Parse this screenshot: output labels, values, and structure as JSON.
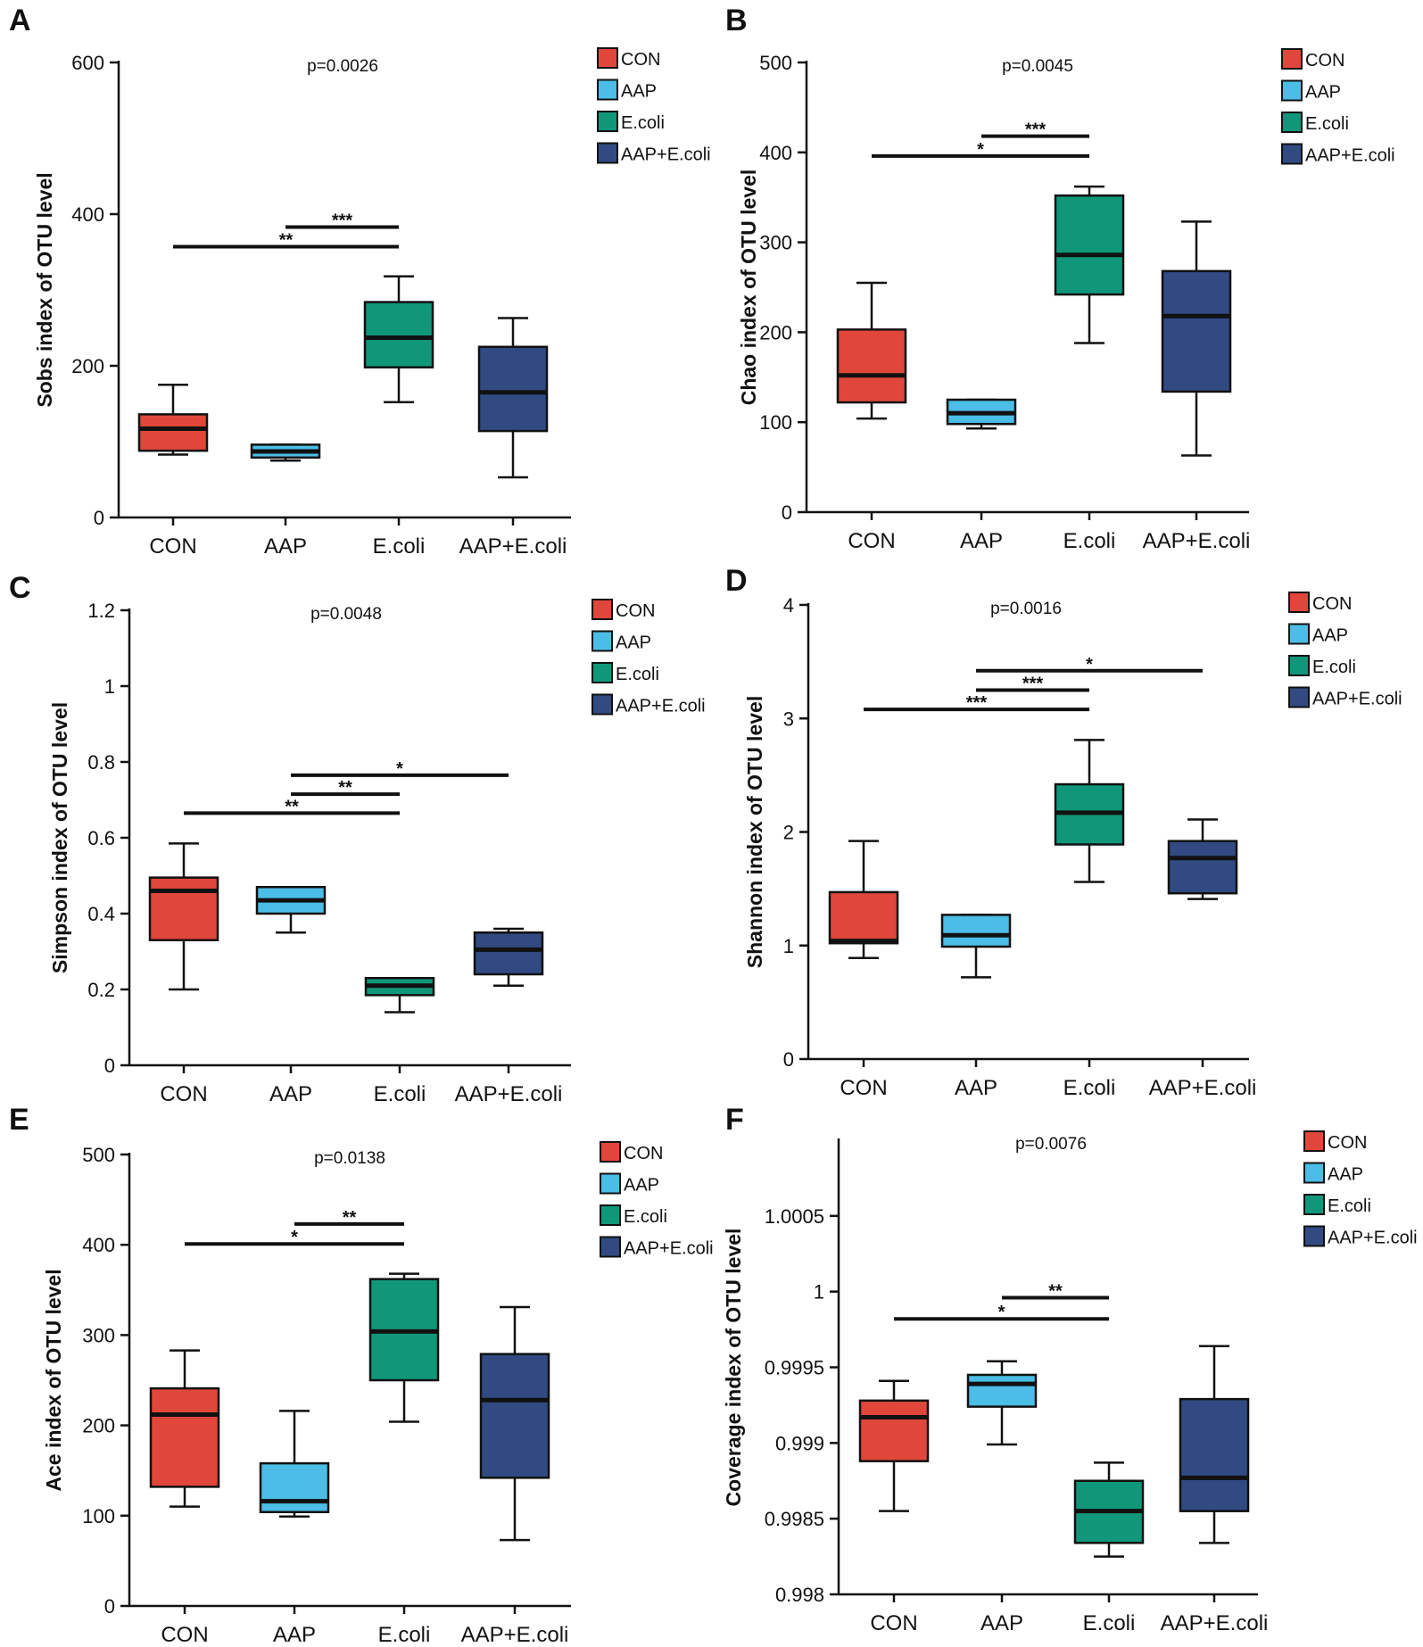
{
  "colors": {
    "CON": "#e0473a",
    "AAP": "#4bbde6",
    "E.coli": "#10977a",
    "AAP+E.coli": "#314a82",
    "axis": "#111111"
  },
  "chart_data": [
    {
      "panel": "A",
      "type": "box",
      "title": "p=0.0026",
      "ylabel": "Sobs index of OTU level",
      "categories": [
        "CON",
        "AAP",
        "E.coli",
        "AAP+E.coli"
      ],
      "ylim": [
        0,
        600
      ],
      "yticks": [
        0,
        200,
        400,
        600
      ],
      "tick_labels": [
        "0",
        "200",
        "400",
        "600"
      ],
      "boxes": [
        {
          "min": 83,
          "q1": 88,
          "median": 117,
          "q3": 136,
          "max": 175
        },
        {
          "min": 75,
          "q1": 79,
          "median": 87,
          "q3": 96,
          "max": 96
        },
        {
          "min": 152,
          "q1": 198,
          "median": 237,
          "q3": 284,
          "max": 318
        },
        {
          "min": 53,
          "q1": 114,
          "median": 165,
          "q3": 225,
          "max": 263
        }
      ],
      "legend": [
        "CON",
        "AAP",
        "E.coli",
        "AAP+E.coli"
      ],
      "significance": [
        {
          "from": 1,
          "to": 2,
          "y": 383,
          "label": "***"
        },
        {
          "from": 0,
          "to": 2,
          "y": 357,
          "label": "**"
        }
      ]
    },
    {
      "panel": "B",
      "type": "box",
      "title": "p=0.0045",
      "ylabel": "Chao index of OTU level",
      "categories": [
        "CON",
        "AAP",
        "E.coli",
        "AAP+E.coli"
      ],
      "ylim": [
        0,
        500
      ],
      "yticks": [
        0,
        100,
        200,
        300,
        400,
        500
      ],
      "tick_labels": [
        "0",
        "100",
        "200",
        "300",
        "400",
        "500"
      ],
      "boxes": [
        {
          "min": 104,
          "q1": 122,
          "median": 152,
          "q3": 203,
          "max": 255
        },
        {
          "min": 93,
          "q1": 98,
          "median": 110,
          "q3": 125,
          "max": 125
        },
        {
          "min": 188,
          "q1": 242,
          "median": 286,
          "q3": 352,
          "max": 362
        },
        {
          "min": 63,
          "q1": 134,
          "median": 218,
          "q3": 268,
          "max": 323
        }
      ],
      "legend": [
        "CON",
        "AAP",
        "E.coli",
        "AAP+E.coli"
      ],
      "significance": [
        {
          "from": 1,
          "to": 2,
          "y": 418,
          "label": "***"
        },
        {
          "from": 0,
          "to": 2,
          "y": 396,
          "label": "*"
        }
      ]
    },
    {
      "panel": "C",
      "type": "box",
      "title": "p=0.0048",
      "ylabel": "Simpson index of OTU level",
      "categories": [
        "CON",
        "AAP",
        "E.coli",
        "AAP+E.coli"
      ],
      "ylim": [
        0,
        1.2
      ],
      "yticks": [
        0,
        0.2,
        0.4,
        0.6,
        0.8,
        1,
        1.2
      ],
      "tick_labels": [
        "0",
        "0.2",
        "0.4",
        "0.6",
        "0.8",
        "1",
        "1.2"
      ],
      "boxes": [
        {
          "min": 0.2,
          "q1": 0.33,
          "median": 0.46,
          "q3": 0.495,
          "max": 0.585
        },
        {
          "min": 0.35,
          "q1": 0.4,
          "median": 0.435,
          "q3": 0.47,
          "max": 0.47
        },
        {
          "min": 0.14,
          "q1": 0.185,
          "median": 0.21,
          "q3": 0.23,
          "max": 0.23
        },
        {
          "min": 0.21,
          "q1": 0.24,
          "median": 0.305,
          "q3": 0.35,
          "max": 0.36
        }
      ],
      "legend": [
        "CON",
        "AAP",
        "E.coli",
        "AAP+E.coli"
      ],
      "significance": [
        {
          "from": 1,
          "to": 3,
          "y": 0.765,
          "label": "*"
        },
        {
          "from": 1,
          "to": 2,
          "y": 0.715,
          "label": "**"
        },
        {
          "from": 0,
          "to": 2,
          "y": 0.665,
          "label": "**"
        }
      ]
    },
    {
      "panel": "D",
      "type": "box",
      "title": "p=0.0016",
      "ylabel": "Shannon index of OTU level",
      "categories": [
        "CON",
        "AAP",
        "E.coli",
        "AAP+E.coli"
      ],
      "ylim": [
        0,
        4
      ],
      "yticks": [
        0,
        1,
        2,
        3,
        4
      ],
      "tick_labels": [
        "0",
        "1",
        "2",
        "3",
        "4"
      ],
      "boxes": [
        {
          "min": 0.89,
          "q1": 1.02,
          "median": 1.04,
          "q3": 1.47,
          "max": 1.92
        },
        {
          "min": 0.72,
          "q1": 0.99,
          "median": 1.09,
          "q3": 1.27,
          "max": 1.27
        },
        {
          "min": 1.56,
          "q1": 1.89,
          "median": 2.17,
          "q3": 2.42,
          "max": 2.81
        },
        {
          "min": 1.41,
          "q1": 1.46,
          "median": 1.77,
          "q3": 1.92,
          "max": 2.11
        }
      ],
      "legend": [
        "CON",
        "AAP",
        "E.coli",
        "AAP+E.coli"
      ],
      "significance": [
        {
          "from": 1,
          "to": 3,
          "y": 3.42,
          "label": "*"
        },
        {
          "from": 1,
          "to": 2,
          "y": 3.25,
          "label": "***"
        },
        {
          "from": 0,
          "to": 2,
          "y": 3.08,
          "label": "***"
        }
      ]
    },
    {
      "panel": "E",
      "type": "box",
      "title": "p=0.0138",
      "ylabel": "Ace index of OTU level",
      "categories": [
        "CON",
        "AAP",
        "E.coli",
        "AAP+E.coli"
      ],
      "ylim": [
        0,
        500
      ],
      "yticks": [
        0,
        100,
        200,
        300,
        400,
        500
      ],
      "tick_labels": [
        "0",
        "100",
        "200",
        "300",
        "400",
        "500"
      ],
      "boxes": [
        {
          "min": 110,
          "q1": 132,
          "median": 212,
          "q3": 241,
          "max": 283
        },
        {
          "min": 99,
          "q1": 104,
          "median": 116,
          "q3": 158,
          "max": 216
        },
        {
          "min": 204,
          "q1": 250,
          "median": 304,
          "q3": 362,
          "max": 368
        },
        {
          "min": 73,
          "q1": 142,
          "median": 228,
          "q3": 279,
          "max": 331
        }
      ],
      "legend": [
        "CON",
        "AAP",
        "E.coli",
        "AAP+E.coli"
      ],
      "significance": [
        {
          "from": 1,
          "to": 2,
          "y": 423,
          "label": "**"
        },
        {
          "from": 0,
          "to": 2,
          "y": 401,
          "label": "*"
        }
      ]
    },
    {
      "panel": "F",
      "type": "box",
      "title": "p=0.0076",
      "ylabel": "Coverage index of OTU level",
      "categories": [
        "CON",
        "AAP",
        "E.coli",
        "AAP+E.coli"
      ],
      "ylim": [
        0.998,
        1.001
      ],
      "yticks": [
        0.998,
        0.9985,
        0.999,
        0.9995,
        1,
        1.0005
      ],
      "tick_labels": [
        "0.998",
        "0.9985",
        "0.999",
        "0.9995",
        "1",
        "1.0005"
      ],
      "boxes": [
        {
          "min": 0.99855,
          "q1": 0.99888,
          "median": 0.99917,
          "q3": 0.99928,
          "max": 0.99941
        },
        {
          "min": 0.99899,
          "q1": 0.99924,
          "median": 0.99939,
          "q3": 0.99945,
          "max": 0.99954
        },
        {
          "min": 0.99825,
          "q1": 0.99834,
          "median": 0.99855,
          "q3": 0.99875,
          "max": 0.99887
        },
        {
          "min": 0.99834,
          "q1": 0.99855,
          "median": 0.99877,
          "q3": 0.99929,
          "max": 0.99964
        }
      ],
      "legend": [
        "CON",
        "AAP",
        "E.coli",
        "AAP+E.coli"
      ],
      "significance": [
        {
          "from": 1,
          "to": 2,
          "y": 0.99996,
          "label": "**"
        },
        {
          "from": 0,
          "to": 2,
          "y": 0.99982,
          "label": "*"
        }
      ]
    }
  ]
}
